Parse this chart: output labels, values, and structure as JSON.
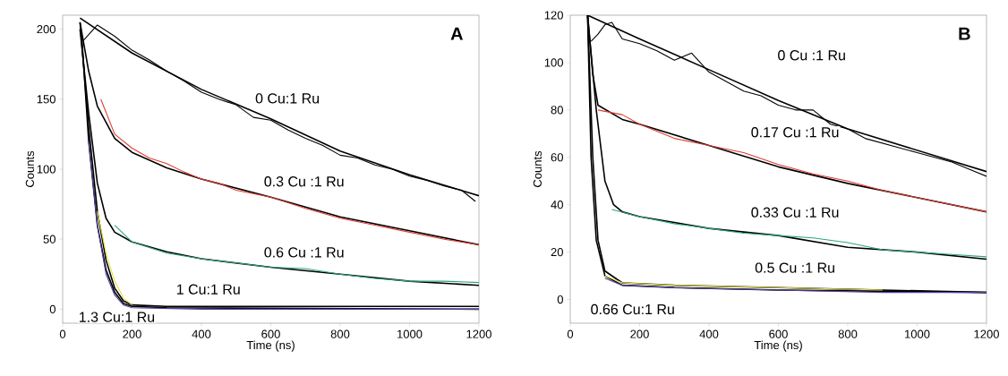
{
  "chart_data": [
    {
      "type": "line",
      "title": "A",
      "xlabel": "Time (ns)",
      "ylabel": "Counts",
      "xlim": [
        0,
        1200
      ],
      "ylim": [
        -10,
        210
      ],
      "xticks": [
        0,
        200,
        400,
        600,
        800,
        1000,
        1200
      ],
      "yticks": [
        0,
        50,
        100,
        150,
        200
      ],
      "annotations": [
        "0 Cu:1 Ru",
        "0.3 Cu :1 Ru",
        "0.6 Cu :1 Ru",
        "1 Cu:1 Ru",
        "1.3 Cu:1 Ru"
      ],
      "series": [
        {
          "color": "#000000",
          "x": [
            50,
            200,
            400,
            600,
            800,
            1000,
            1200
          ],
          "values": [
            208,
            183,
            157,
            136,
            113,
            96,
            81
          ]
        },
        {
          "color": "#000000",
          "x": [
            50,
            75,
            100,
            150,
            200,
            300,
            400,
            600,
            800,
            1000,
            1200
          ],
          "values": [
            205,
            170,
            145,
            122,
            112,
            101,
            93,
            80,
            66,
            56,
            46
          ]
        },
        {
          "color": "#000000",
          "x": [
            50,
            75,
            100,
            125,
            150,
            200,
            300,
            400,
            600,
            800,
            1000,
            1200
          ],
          "values": [
            200,
            140,
            90,
            65,
            55,
            48,
            41,
            36,
            30,
            25,
            20,
            17
          ]
        },
        {
          "color": "#000000",
          "x": [
            50,
            75,
            100,
            125,
            150,
            175,
            200,
            300,
            1200
          ],
          "values": [
            205,
            130,
            70,
            35,
            15,
            6,
            3,
            2,
            2
          ]
        },
        {
          "color": "#000000",
          "x": [
            55,
            75,
            100,
            125,
            150,
            175,
            200,
            300,
            1200
          ],
          "values": [
            195,
            120,
            60,
            28,
            12,
            4,
            2,
            1,
            0
          ]
        },
        {
          "color": "#000000",
          "x": [
            60,
            100,
            150,
            200,
            250,
            300,
            350,
            400,
            450,
            500,
            550,
            600,
            650,
            700,
            750,
            800,
            850,
            900,
            950,
            1000,
            1050,
            1100,
            1150,
            1190
          ],
          "values": [
            192,
            203,
            195,
            185,
            178,
            170,
            163,
            155,
            150,
            146,
            137,
            135,
            128,
            122,
            117,
            110,
            108,
            103,
            100,
            95,
            92,
            88,
            85,
            77
          ]
        },
        {
          "color": "#e03c32",
          "x": [
            110,
            150,
            200,
            250,
            300,
            350,
            400,
            450,
            500,
            600,
            700,
            800,
            900,
            1000,
            1100,
            1200
          ],
          "values": [
            150,
            125,
            115,
            108,
            104,
            98,
            93,
            90,
            85,
            80,
            72,
            65,
            60,
            55,
            50,
            46
          ]
        },
        {
          "color": "#2aa87a",
          "x": [
            150,
            200,
            300,
            400,
            500,
            600,
            700,
            800,
            900,
            1000,
            1100,
            1200
          ],
          "values": [
            60,
            48,
            40,
            36,
            33,
            30,
            29,
            25,
            22,
            20,
            20,
            19
          ]
        },
        {
          "color": "#e8e040",
          "x": [
            100,
            125,
            150,
            175,
            200
          ],
          "values": [
            70,
            40,
            20,
            8,
            3
          ]
        },
        {
          "color": "#5040a0",
          "x": [
            75,
            100,
            125,
            150,
            175,
            200,
            400,
            1200
          ],
          "values": [
            120,
            60,
            25,
            10,
            3,
            1,
            0,
            0
          ]
        }
      ]
    },
    {
      "type": "line",
      "title": "B",
      "xlabel": "Time (ns)",
      "ylabel": "Counts",
      "xlim": [
        0,
        1200
      ],
      "ylim": [
        -10,
        120
      ],
      "xticks": [
        0,
        200,
        400,
        600,
        800,
        1000,
        1200
      ],
      "yticks": [
        0,
        20,
        40,
        60,
        80,
        100,
        120
      ],
      "annotations": [
        "0 Cu :1 Ru",
        "0.17 Cu :1 Ru",
        "0.33 Cu :1 Ru",
        "0.5 Cu :1 Ru",
        "0.66 Cu:1 Ru"
      ],
      "series": [
        {
          "color": "#000000",
          "x": [
            50,
            200,
            400,
            600,
            800,
            1000,
            1200
          ],
          "values": [
            120,
            110,
            97,
            84,
            72,
            63,
            54
          ]
        },
        {
          "color": "#000000",
          "x": [
            50,
            65,
            80,
            150,
            200,
            400,
            600,
            800,
            1000,
            1200
          ],
          "values": [
            120,
            95,
            82,
            76,
            74,
            65,
            56,
            49,
            43,
            37
          ]
        },
        {
          "color": "#000000",
          "x": [
            50,
            75,
            100,
            125,
            150,
            200,
            400,
            600,
            800,
            1000,
            1200
          ],
          "values": [
            120,
            80,
            50,
            40,
            37,
            35,
            30,
            27,
            22,
            20,
            17
          ]
        },
        {
          "color": "#000000",
          "x": [
            50,
            65,
            80,
            100,
            150,
            300,
            600,
            1200
          ],
          "values": [
            120,
            60,
            25,
            12,
            7,
            6,
            5,
            3
          ]
        },
        {
          "color": "#000000",
          "x": [
            50,
            60,
            75,
            100,
            150,
            300,
            600,
            1200
          ],
          "values": [
            120,
            60,
            25,
            10,
            6,
            5,
            4,
            3
          ]
        },
        {
          "color": "#000000",
          "x": [
            60,
            80,
            100,
            120,
            150,
            200,
            250,
            300,
            350,
            400,
            450,
            500,
            550,
            600,
            650,
            700,
            750,
            800,
            850,
            900,
            950,
            1000,
            1050,
            1100,
            1150,
            1200
          ],
          "values": [
            109,
            112,
            116,
            117,
            110,
            108,
            105,
            101,
            104,
            96,
            92,
            88,
            86,
            82,
            80,
            80,
            74,
            72,
            68,
            66,
            64,
            62,
            60,
            58,
            55,
            52
          ]
        },
        {
          "color": "#e03c32",
          "x": [
            80,
            150,
            200,
            300,
            400,
            500,
            600,
            700,
            800,
            900,
            1000,
            1100,
            1200
          ],
          "values": [
            80,
            78,
            74,
            68,
            65,
            62,
            57,
            53,
            50,
            46,
            43,
            40,
            37
          ]
        },
        {
          "color": "#2aa87a",
          "x": [
            120,
            200,
            300,
            400,
            500,
            600,
            700,
            800,
            900,
            1000,
            1100,
            1200
          ],
          "values": [
            38,
            35,
            32,
            30,
            28,
            27,
            26,
            24,
            21,
            20,
            19,
            18
          ]
        },
        {
          "color": "#e8e040",
          "x": [
            100,
            150,
            300,
            600,
            900
          ],
          "values": [
            10,
            7,
            6,
            5,
            4
          ]
        },
        {
          "color": "#5040a0",
          "x": [
            100,
            150,
            300,
            600,
            900,
            1200
          ],
          "values": [
            9,
            6,
            5,
            4,
            3,
            3
          ]
        }
      ]
    }
  ]
}
